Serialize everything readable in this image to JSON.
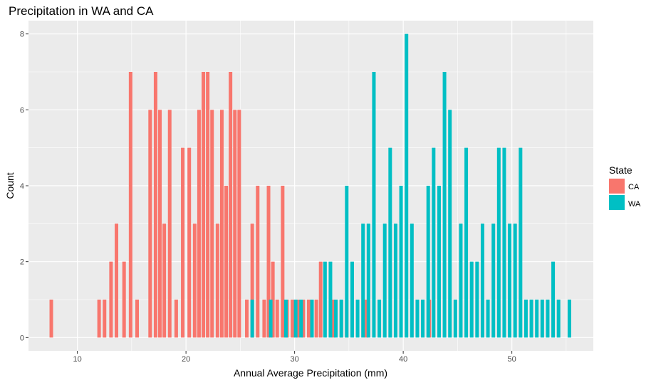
{
  "chart_data": {
    "type": "bar",
    "title": "Precipitation in WA and CA",
    "xlabel": "Annual Average Precipitation (mm)",
    "ylabel": "Count",
    "xlim": [
      5.5,
      57.5
    ],
    "ylim": [
      -0.35,
      8.35
    ],
    "x_ticks": [
      10,
      20,
      30,
      40,
      50
    ],
    "y_ticks": [
      0,
      2,
      4,
      6,
      8
    ],
    "grid": true,
    "legend": {
      "title": "State",
      "position": "right"
    },
    "series": [
      {
        "name": "CA",
        "color": "#F8766D",
        "points": [
          [
            7.6,
            1
          ],
          [
            12.0,
            1
          ],
          [
            12.5,
            1
          ],
          [
            13.1,
            2
          ],
          [
            13.6,
            3
          ],
          [
            14.3,
            2
          ],
          [
            14.9,
            7
          ],
          [
            15.5,
            1
          ],
          [
            16.7,
            6
          ],
          [
            17.2,
            7
          ],
          [
            17.6,
            6
          ],
          [
            18.0,
            3
          ],
          [
            18.5,
            6
          ],
          [
            19.1,
            1
          ],
          [
            19.7,
            5
          ],
          [
            20.3,
            5
          ],
          [
            20.8,
            3
          ],
          [
            21.2,
            6
          ],
          [
            21.6,
            7
          ],
          [
            22.0,
            7
          ],
          [
            22.4,
            6
          ],
          [
            22.9,
            3
          ],
          [
            23.3,
            6
          ],
          [
            23.7,
            4
          ],
          [
            24.1,
            7
          ],
          [
            24.5,
            6
          ],
          [
            24.9,
            6
          ],
          [
            25.6,
            1
          ],
          [
            26.1,
            3
          ],
          [
            26.6,
            4
          ],
          [
            27.2,
            1
          ],
          [
            27.6,
            4
          ],
          [
            28.0,
            2
          ],
          [
            28.4,
            1
          ],
          [
            28.9,
            4
          ],
          [
            29.3,
            1
          ],
          [
            29.8,
            1
          ],
          [
            30.3,
            1
          ],
          [
            30.8,
            1
          ],
          [
            31.3,
            1
          ],
          [
            32.0,
            1
          ],
          [
            32.4,
            2
          ],
          [
            33.6,
            1
          ],
          [
            34.3,
            1
          ],
          [
            34.8,
            1
          ],
          [
            36.6,
            1
          ],
          [
            42.4,
            1
          ]
        ]
      },
      {
        "name": "WA",
        "color": "#00BFC4",
        "points": [
          [
            26.1,
            1
          ],
          [
            27.8,
            1
          ],
          [
            29.2,
            1
          ],
          [
            30.1,
            1
          ],
          [
            30.6,
            1
          ],
          [
            31.6,
            1
          ],
          [
            32.8,
            2
          ],
          [
            33.3,
            2
          ],
          [
            33.8,
            1
          ],
          [
            34.3,
            1
          ],
          [
            34.8,
            4
          ],
          [
            35.3,
            2
          ],
          [
            35.8,
            1
          ],
          [
            36.3,
            3
          ],
          [
            36.8,
            3
          ],
          [
            37.3,
            7
          ],
          [
            37.8,
            1
          ],
          [
            38.3,
            3
          ],
          [
            38.8,
            5
          ],
          [
            39.3,
            3
          ],
          [
            39.8,
            4
          ],
          [
            40.3,
            8
          ],
          [
            40.8,
            3
          ],
          [
            41.3,
            1
          ],
          [
            41.8,
            1
          ],
          [
            42.3,
            4
          ],
          [
            42.8,
            5
          ],
          [
            43.3,
            4
          ],
          [
            43.8,
            7
          ],
          [
            44.3,
            6
          ],
          [
            44.8,
            1
          ],
          [
            45.3,
            3
          ],
          [
            45.8,
            5
          ],
          [
            46.3,
            2
          ],
          [
            46.8,
            2
          ],
          [
            47.3,
            3
          ],
          [
            47.8,
            1
          ],
          [
            48.3,
            3
          ],
          [
            48.8,
            5
          ],
          [
            49.3,
            5
          ],
          [
            49.8,
            3
          ],
          [
            50.3,
            3
          ],
          [
            50.8,
            5
          ],
          [
            51.3,
            1
          ],
          [
            51.8,
            1
          ],
          [
            52.3,
            1
          ],
          [
            52.8,
            1
          ],
          [
            53.3,
            1
          ],
          [
            53.8,
            2
          ],
          [
            54.3,
            1
          ],
          [
            55.3,
            1
          ]
        ]
      }
    ]
  }
}
